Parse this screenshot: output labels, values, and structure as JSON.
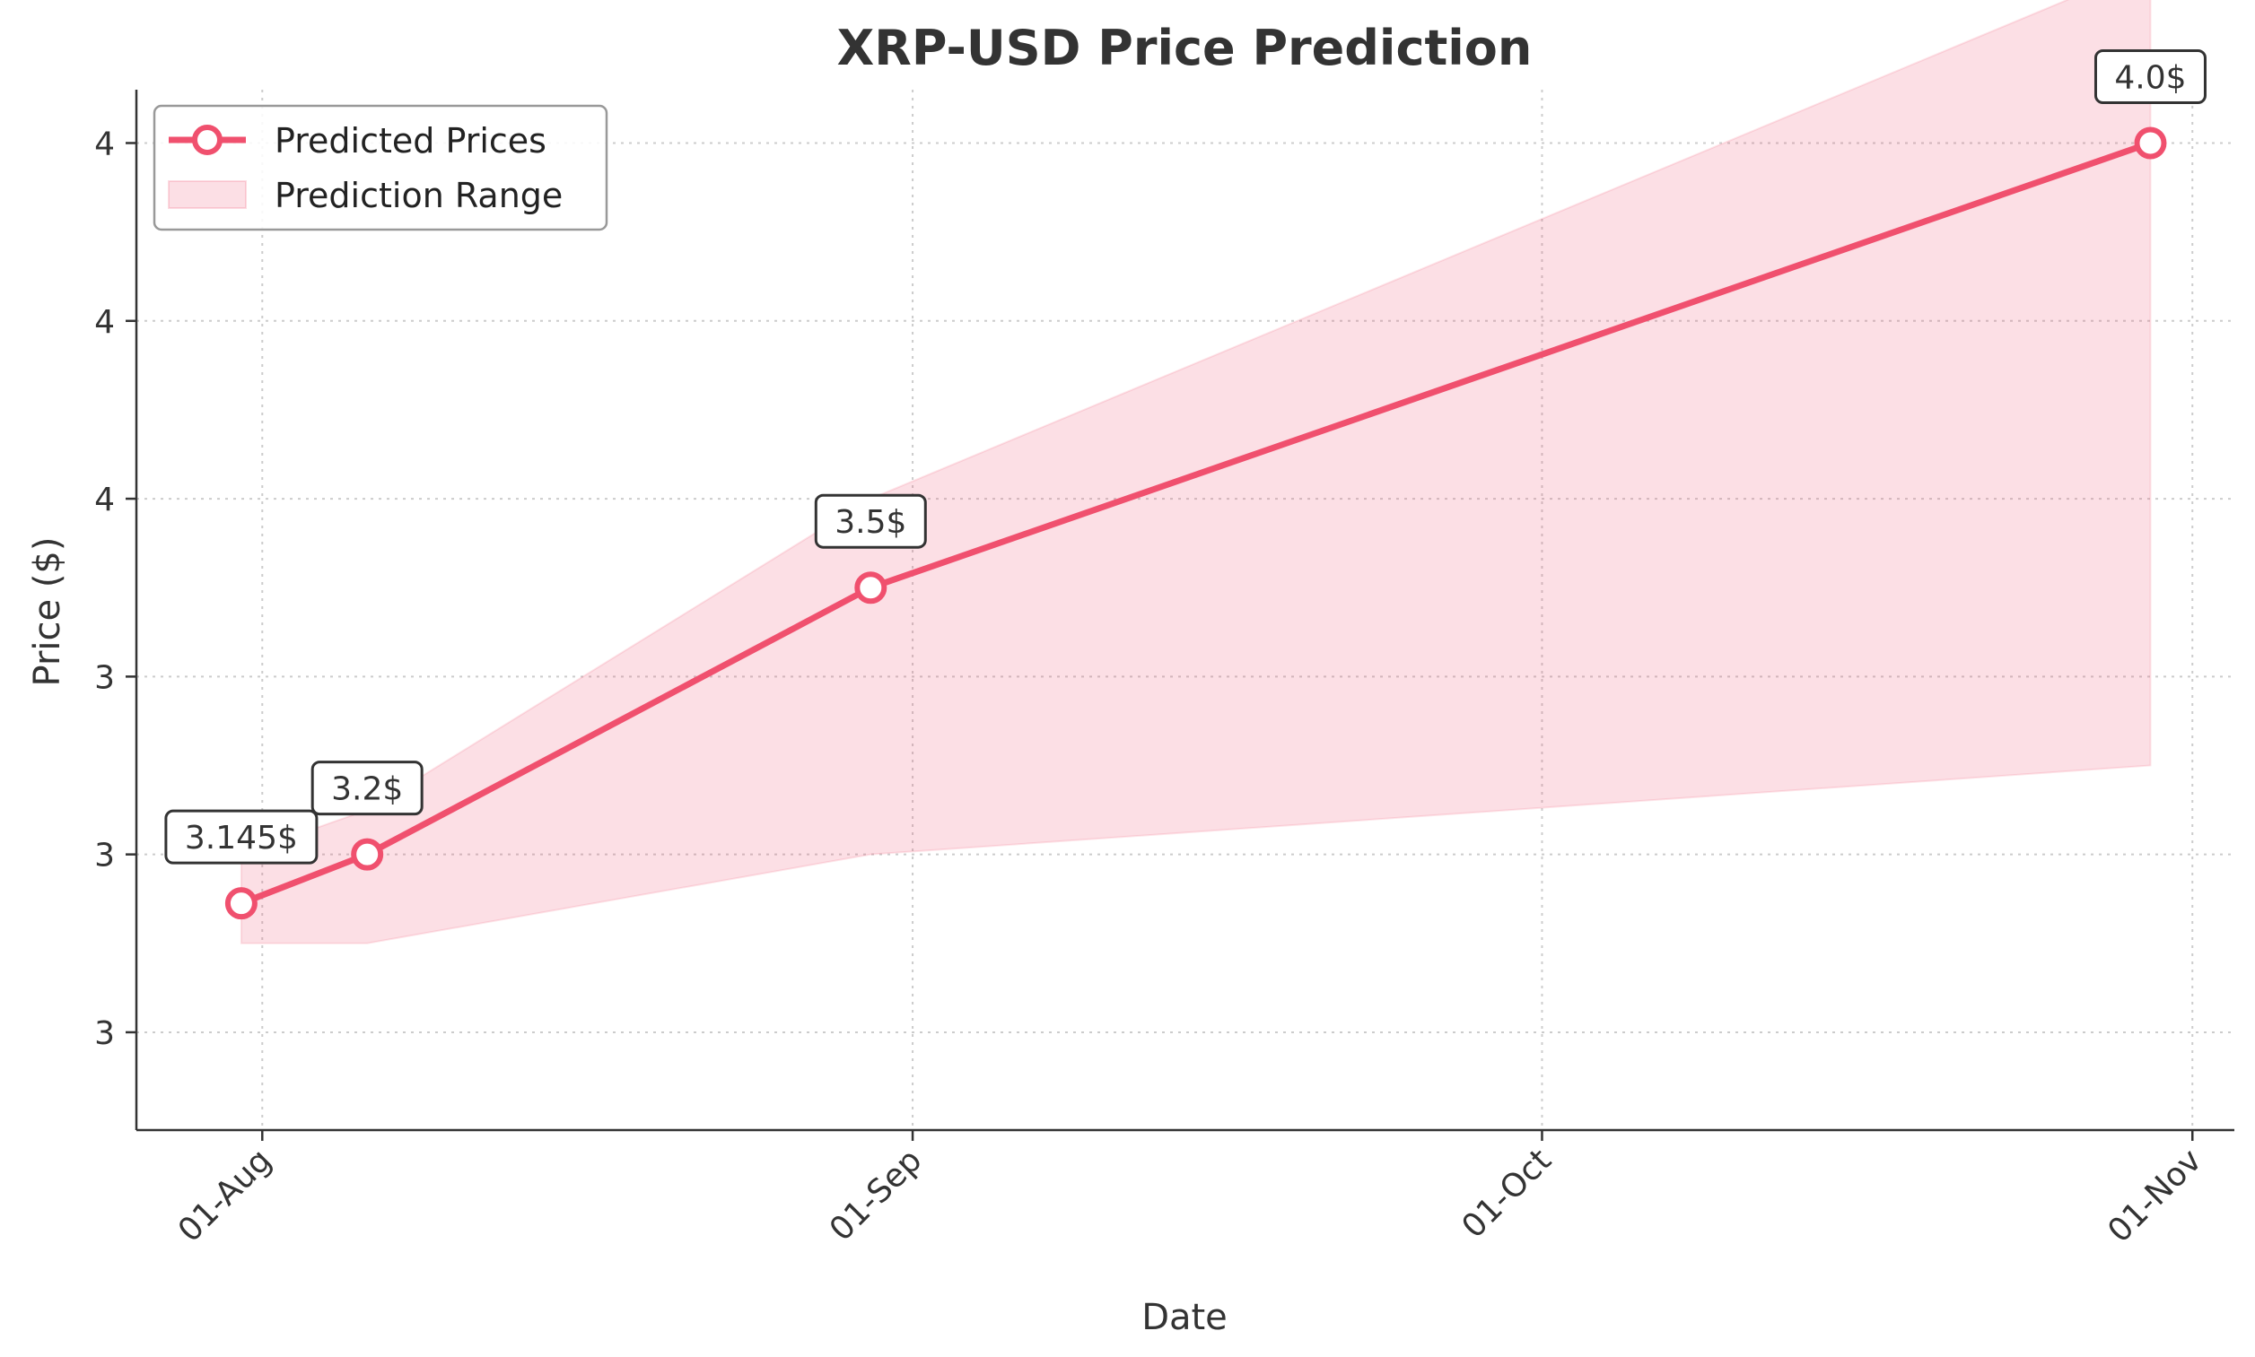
{
  "chart_data": {
    "type": "line",
    "title": "XRP-USD Price Prediction",
    "xlabel": "Date",
    "ylabel": "Price ($)",
    "x_ticks": [
      "01-Aug",
      "01-Sep",
      "01-Oct",
      "01-Nov"
    ],
    "x_tick_dates": [
      "2025-08-01",
      "2025-09-01",
      "2025-10-01",
      "2025-11-01"
    ],
    "y_ticks": [
      3.0,
      3.2,
      3.4,
      3.6,
      3.8,
      4.0
    ],
    "y_tick_labels": [
      "3",
      "3",
      "3",
      "4",
      "4",
      "4"
    ],
    "ylim": [
      2.89,
      4.06
    ],
    "xlim": [
      "2025-07-26",
      "2025-11-03"
    ],
    "grid": true,
    "legend_position": "top-left",
    "series": [
      {
        "name": "Predicted Prices",
        "x": [
          "2025-07-31",
          "2025-08-06",
          "2025-08-30",
          "2025-10-30"
        ],
        "y": [
          3.145,
          3.2,
          3.5,
          4.0
        ],
        "labels": [
          "3.145$",
          "3.2$",
          "3.5$",
          "4.0$"
        ],
        "color": "#f0506e"
      },
      {
        "name": "Prediction Range",
        "type": "area",
        "x": [
          "2025-07-31",
          "2025-08-06",
          "2025-08-30",
          "2025-10-30"
        ],
        "lower": [
          3.1,
          3.1,
          3.2,
          3.3
        ],
        "upper": [
          3.2,
          3.25,
          3.6,
          4.2
        ],
        "color": "#f0506e",
        "opacity": 0.18
      }
    ]
  }
}
